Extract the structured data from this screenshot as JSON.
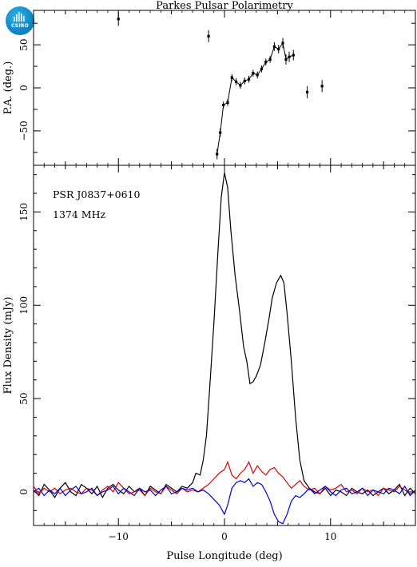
{
  "chart_data": [
    {
      "type": "scatter",
      "title": "Parkes Pulsar Polarimetry",
      "xlabel": "",
      "ylabel": "P.A. (deg.)",
      "xlim": [
        -18,
        18
      ],
      "ylim": [
        -90,
        90
      ],
      "yticks": [
        -50,
        0,
        50
      ],
      "ytick_labels": [
        "−50",
        "0",
        "50"
      ],
      "grid": false,
      "series": [
        {
          "points": [
            {
              "x": -10.0,
              "y": 80,
              "err": 8
            },
            {
              "x": -1.5,
              "y": 60,
              "err": 7
            },
            {
              "x": -0.7,
              "y": -77,
              "err": 6
            },
            {
              "x": -0.4,
              "y": -52,
              "err": 5
            },
            {
              "x": -0.1,
              "y": -20,
              "err": 4
            },
            {
              "x": 0.3,
              "y": -17,
              "err": 4
            },
            {
              "x": 0.7,
              "y": 12,
              "err": 4
            },
            {
              "x": 1.1,
              "y": 7,
              "err": 4
            },
            {
              "x": 1.5,
              "y": 3,
              "err": 4
            },
            {
              "x": 1.9,
              "y": 8,
              "err": 4
            },
            {
              "x": 2.3,
              "y": 10,
              "err": 4
            },
            {
              "x": 2.7,
              "y": 17,
              "err": 4
            },
            {
              "x": 3.1,
              "y": 15,
              "err": 4
            },
            {
              "x": 3.5,
              "y": 22,
              "err": 4
            },
            {
              "x": 3.9,
              "y": 30,
              "err": 4
            },
            {
              "x": 4.3,
              "y": 33,
              "err": 4
            },
            {
              "x": 4.7,
              "y": 48,
              "err": 5
            },
            {
              "x": 5.1,
              "y": 45,
              "err": 5
            },
            {
              "x": 5.5,
              "y": 52,
              "err": 6
            },
            {
              "x": 5.8,
              "y": 33,
              "err": 6
            },
            {
              "x": 6.1,
              "y": 36,
              "err": 6
            },
            {
              "x": 6.5,
              "y": 38,
              "err": 6
            },
            {
              "x": 7.8,
              "y": -5,
              "err": 7
            },
            {
              "x": 9.2,
              "y": 2,
              "err": 7
            }
          ],
          "connected_range": [
            2,
            21
          ]
        }
      ]
    },
    {
      "type": "line",
      "xlabel": "Pulse Longitude (deg)",
      "ylabel": "Flux Density (mJy)",
      "xlim": [
        -18,
        18
      ],
      "ylim": [
        -18,
        175
      ],
      "xticks": [
        -10,
        0,
        10
      ],
      "xtick_labels": [
        "−10",
        "0",
        "10"
      ],
      "yticks": [
        0,
        50,
        100,
        150
      ],
      "ytick_labels": [
        "0",
        "50",
        "100",
        "150"
      ],
      "grid": false,
      "annotations": [
        "PSR J0837+0610",
        "1374 MHz"
      ],
      "series": [
        {
          "color": "#000000",
          "points": [
            [
              -18,
              1
            ],
            [
              -17.5,
              -2
            ],
            [
              -17,
              4
            ],
            [
              -16.5,
              1
            ],
            [
              -16,
              -3
            ],
            [
              -15.5,
              2
            ],
            [
              -15,
              5
            ],
            [
              -14.5,
              0
            ],
            [
              -14,
              -2
            ],
            [
              -13.5,
              4
            ],
            [
              -13,
              2
            ],
            [
              -12.5,
              -1
            ],
            [
              -12,
              3
            ],
            [
              -11.5,
              -3
            ],
            [
              -11,
              2
            ],
            [
              -10.5,
              4
            ],
            [
              -10,
              1
            ],
            [
              -9.5,
              -1
            ],
            [
              -9,
              3
            ],
            [
              -8.5,
              0
            ],
            [
              -8,
              2
            ],
            [
              -7.5,
              -2
            ],
            [
              -7,
              3
            ],
            [
              -6.5,
              1
            ],
            [
              -6,
              -1
            ],
            [
              -5.5,
              4
            ],
            [
              -5,
              2
            ],
            [
              -4.5,
              0
            ],
            [
              -4,
              3
            ],
            [
              -3.5,
              2
            ],
            [
              -3,
              5
            ],
            [
              -2.7,
              10
            ],
            [
              -2.3,
              9
            ],
            [
              -2,
              17
            ],
            [
              -1.7,
              30
            ],
            [
              -1.4,
              55
            ],
            [
              -1.0,
              90
            ],
            [
              -0.6,
              130
            ],
            [
              -0.3,
              158
            ],
            [
              0,
              171
            ],
            [
              0.3,
              163
            ],
            [
              0.6,
              140
            ],
            [
              1.0,
              116
            ],
            [
              1.4,
              98
            ],
            [
              1.8,
              78
            ],
            [
              2.1,
              70
            ],
            [
              2.4,
              58
            ],
            [
              2.7,
              59
            ],
            [
              3.0,
              62
            ],
            [
              3.4,
              68
            ],
            [
              3.8,
              80
            ],
            [
              4.2,
              93
            ],
            [
              4.5,
              104
            ],
            [
              4.9,
              112
            ],
            [
              5.3,
              116
            ],
            [
              5.6,
              112
            ],
            [
              5.9,
              96
            ],
            [
              6.3,
              70
            ],
            [
              6.7,
              40
            ],
            [
              7.1,
              17
            ],
            [
              7.5,
              6
            ],
            [
              8,
              2
            ],
            [
              8.5,
              0
            ],
            [
              9,
              -1
            ],
            [
              9.5,
              2
            ],
            [
              10,
              -2
            ],
            [
              10.5,
              1
            ],
            [
              11,
              0
            ],
            [
              11.5,
              -2
            ],
            [
              12,
              2
            ],
            [
              12.5,
              0
            ],
            [
              13,
              -1
            ],
            [
              13.5,
              1
            ],
            [
              14,
              -2
            ],
            [
              14.5,
              0
            ],
            [
              15,
              2
            ],
            [
              15.5,
              -1
            ],
            [
              16,
              1
            ],
            [
              16.5,
              4
            ],
            [
              17,
              -2
            ],
            [
              17.5,
              2
            ],
            [
              18,
              -1
            ]
          ]
        },
        {
          "color": "#e00000",
          "points": [
            [
              -18,
              3
            ],
            [
              -17.5,
              -1
            ],
            [
              -17,
              2
            ],
            [
              -16.5,
              0
            ],
            [
              -16,
              2
            ],
            [
              -15.5,
              -1
            ],
            [
              -15,
              1
            ],
            [
              -14.5,
              2
            ],
            [
              -14,
              0
            ],
            [
              -13.5,
              -1
            ],
            [
              -13,
              2
            ],
            [
              -12.5,
              1
            ],
            [
              -12,
              -2
            ],
            [
              -11.5,
              1
            ],
            [
              -11,
              3
            ],
            [
              -10.5,
              0
            ],
            [
              -10,
              5
            ],
            [
              -9.5,
              2
            ],
            [
              -9,
              -1
            ],
            [
              -8.5,
              0
            ],
            [
              -8,
              1
            ],
            [
              -7.5,
              -2
            ],
            [
              -7,
              2
            ],
            [
              -6.5,
              0
            ],
            [
              -6,
              -1
            ],
            [
              -5.5,
              3
            ],
            [
              -5,
              1
            ],
            [
              -4.5,
              -1
            ],
            [
              -4,
              2
            ],
            [
              -3.5,
              0
            ],
            [
              -3,
              1
            ],
            [
              -2.5,
              0
            ],
            [
              -2,
              2
            ],
            [
              -1.5,
              4
            ],
            [
              -1,
              7
            ],
            [
              -0.5,
              10
            ],
            [
              0,
              12
            ],
            [
              0.3,
              16
            ],
            [
              0.7,
              9
            ],
            [
              1.1,
              7
            ],
            [
              1.5,
              10
            ],
            [
              1.9,
              12
            ],
            [
              2.3,
              16
            ],
            [
              2.7,
              10
            ],
            [
              3.1,
              14
            ],
            [
              3.5,
              11
            ],
            [
              3.9,
              9
            ],
            [
              4.3,
              12
            ],
            [
              4.7,
              13
            ],
            [
              5.1,
              10
            ],
            [
              5.5,
              8
            ],
            [
              5.9,
              5
            ],
            [
              6.3,
              2
            ],
            [
              6.7,
              4
            ],
            [
              7.1,
              6
            ],
            [
              7.5,
              3
            ],
            [
              8,
              1
            ],
            [
              8.5,
              2
            ],
            [
              9,
              -1
            ],
            [
              9.5,
              3
            ],
            [
              10,
              1
            ],
            [
              10.5,
              2
            ],
            [
              11,
              4
            ],
            [
              11.5,
              0
            ],
            [
              12,
              1
            ],
            [
              12.5,
              -1
            ],
            [
              13,
              2
            ],
            [
              13.5,
              0
            ],
            [
              14,
              1
            ],
            [
              14.5,
              -2
            ],
            [
              15,
              2
            ],
            [
              15.5,
              1
            ],
            [
              16,
              0
            ],
            [
              16.5,
              3
            ],
            [
              17,
              1
            ],
            [
              17.5,
              -1
            ],
            [
              18,
              0
            ]
          ]
        },
        {
          "color": "#0000e0",
          "points": [
            [
              -18,
              0
            ],
            [
              -17.5,
              2
            ],
            [
              -17,
              -2
            ],
            [
              -16.5,
              1
            ],
            [
              -16,
              -1
            ],
            [
              -15.5,
              2
            ],
            [
              -15,
              -2
            ],
            [
              -14.5,
              1
            ],
            [
              -14,
              3
            ],
            [
              -13.5,
              -1
            ],
            [
              -13,
              0
            ],
            [
              -12.5,
              2
            ],
            [
              -12,
              -2
            ],
            [
              -11.5,
              0
            ],
            [
              -11,
              1
            ],
            [
              -10.5,
              3
            ],
            [
              -10,
              -1
            ],
            [
              -9.5,
              2
            ],
            [
              -9,
              0
            ],
            [
              -8.5,
              -2
            ],
            [
              -8,
              2
            ],
            [
              -7.5,
              0
            ],
            [
              -7,
              1
            ],
            [
              -6.5,
              -2
            ],
            [
              -6,
              1
            ],
            [
              -5.5,
              3
            ],
            [
              -5,
              -1
            ],
            [
              -4.5,
              0
            ],
            [
              -4,
              2
            ],
            [
              -3.5,
              1
            ],
            [
              -3,
              2
            ],
            [
              -2.5,
              0
            ],
            [
              -2,
              1
            ],
            [
              -1.5,
              -1
            ],
            [
              -1,
              -4
            ],
            [
              -0.5,
              -7
            ],
            [
              0,
              -12
            ],
            [
              0.3,
              -7
            ],
            [
              0.7,
              2
            ],
            [
              1.1,
              5
            ],
            [
              1.5,
              6
            ],
            [
              1.9,
              5
            ],
            [
              2.3,
              7
            ],
            [
              2.7,
              3
            ],
            [
              3.1,
              5
            ],
            [
              3.5,
              4
            ],
            [
              3.9,
              0
            ],
            [
              4.3,
              -5
            ],
            [
              4.7,
              -12
            ],
            [
              5.1,
              -16
            ],
            [
              5.5,
              -17
            ],
            [
              5.9,
              -12
            ],
            [
              6.3,
              -5
            ],
            [
              6.7,
              -2
            ],
            [
              7.1,
              -3
            ],
            [
              7.5,
              -1
            ],
            [
              8,
              2
            ],
            [
              8.5,
              -1
            ],
            [
              9,
              1
            ],
            [
              9.5,
              3
            ],
            [
              10,
              0
            ],
            [
              10.5,
              -2
            ],
            [
              11,
              1
            ],
            [
              11.5,
              2
            ],
            [
              12,
              -1
            ],
            [
              12.5,
              0
            ],
            [
              13,
              2
            ],
            [
              13.5,
              -2
            ],
            [
              14,
              1
            ],
            [
              14.5,
              0
            ],
            [
              15,
              -1
            ],
            [
              15.5,
              2
            ],
            [
              16,
              1
            ],
            [
              16.5,
              -1
            ],
            [
              17,
              3
            ],
            [
              17.5,
              -2
            ],
            [
              18,
              1
            ]
          ]
        }
      ]
    }
  ],
  "logo": {
    "text": "CSIRO",
    "color": "#1a9ad6"
  }
}
